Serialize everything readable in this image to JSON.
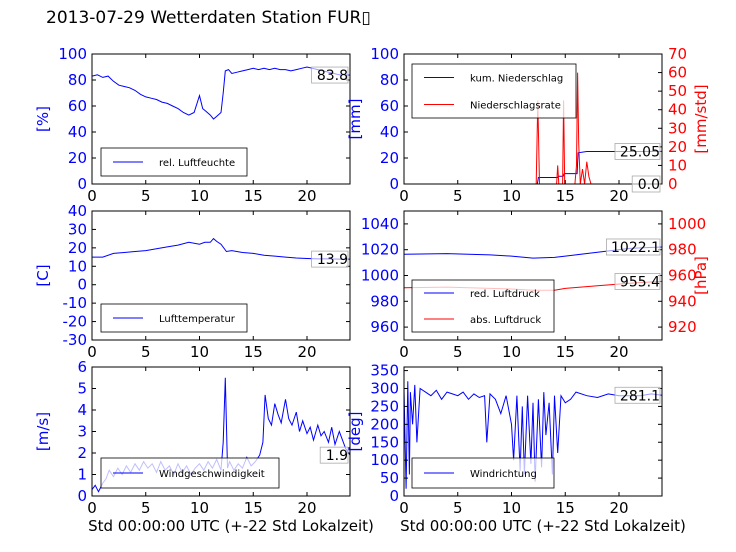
{
  "page": {
    "title": "2013-07-29 Wetterdaten Station FUR▯"
  },
  "colors": {
    "blue": "#0000ff",
    "red": "#ff0000",
    "axes": "#000000"
  },
  "chart_data": [
    {
      "id": "humidity",
      "type": "line",
      "xlim": [
        0,
        24
      ],
      "xticks": [
        0,
        5,
        10,
        15,
        20
      ],
      "ylim": [
        0,
        100
      ],
      "yticks": [
        0,
        20,
        40,
        60,
        80,
        100
      ],
      "ylabel": "[%]",
      "xlabel": "",
      "value_box": "83.8",
      "legend": {
        "placement": "lower-left",
        "entries": [
          {
            "label": "rel. Luftfeuchte",
            "color": "#0000ff"
          }
        ]
      },
      "series": [
        {
          "name": "rel. Luftfeuchte",
          "color": "#0000ff",
          "x": [
            0,
            0.5,
            1,
            1.5,
            2,
            2.5,
            3,
            3.5,
            4,
            4.5,
            5,
            5.5,
            6,
            6.5,
            7,
            7.5,
            8,
            8.5,
            9,
            9.5,
            10,
            10.3,
            10.6,
            11,
            11.3,
            11.6,
            12,
            12.2,
            12.4,
            12.7,
            13,
            13.5,
            14,
            14.5,
            15,
            15.5,
            16,
            16.5,
            17,
            17.5,
            18,
            18.5,
            19,
            19.5,
            20,
            20.5,
            21,
            21.5,
            22,
            22.5,
            23,
            23.5,
            24
          ],
          "y": [
            83,
            84,
            82,
            83,
            79,
            76,
            75,
            74,
            72,
            69,
            67,
            66,
            65,
            63,
            62,
            60,
            58,
            55,
            53,
            55,
            68,
            58,
            56,
            53,
            50,
            52,
            55,
            70,
            87,
            88,
            85,
            86,
            87,
            88,
            89,
            88,
            89,
            88,
            89,
            88,
            88,
            87,
            88,
            89,
            90,
            89,
            88,
            87,
            86,
            85,
            84,
            84,
            83.8
          ]
        }
      ]
    },
    {
      "id": "precipitation",
      "type": "line",
      "xlim": [
        0,
        24
      ],
      "xticks": [
        0,
        5,
        10,
        15,
        20
      ],
      "ylim": [
        0,
        100
      ],
      "yticks": [
        0,
        20,
        40,
        60,
        80,
        100
      ],
      "ylabel": "[mm]",
      "y2lim": [
        0,
        70
      ],
      "y2ticks": [
        0,
        10,
        20,
        30,
        40,
        50,
        60,
        70
      ],
      "y2label": "[mm/std]",
      "value_box": "25.05",
      "value_box2": "0.0",
      "legend": {
        "placement": "upper-left",
        "entries": [
          {
            "label": "kum. Niederschlag",
            "color": "#0000ff"
          },
          {
            "label": "Niederschlagsrate",
            "color": "#ff0000"
          }
        ]
      },
      "series": [
        {
          "name": "kum. Niederschlag",
          "color": "#0000ff",
          "axis": "left",
          "x": [
            0,
            12.4,
            12.5,
            14.3,
            14.4,
            14.8,
            14.9,
            16.1,
            16.2,
            17,
            20,
            24
          ],
          "y": [
            0,
            0,
            5,
            5,
            6,
            6,
            8,
            8,
            24,
            25,
            25,
            25.05
          ]
        },
        {
          "name": "Niederschlagsrate",
          "color": "#ff0000",
          "axis": "right",
          "x": [
            0,
            12.3,
            12.45,
            12.6,
            14.2,
            14.3,
            14.4,
            14.5,
            14.75,
            14.85,
            14.95,
            15.9,
            16.05,
            16.15,
            16.25,
            16.4,
            16.6,
            16.8,
            17.0,
            17.2,
            17.4,
            17.6,
            18,
            24
          ],
          "y": [
            0,
            0,
            45,
            0,
            0,
            10,
            0,
            0,
            0,
            45,
            0,
            0,
            10,
            60,
            22,
            0,
            8,
            0,
            12,
            4,
            0,
            0,
            0,
            0
          ]
        }
      ]
    },
    {
      "id": "temperature",
      "type": "line",
      "xlim": [
        0,
        24
      ],
      "xticks": [
        0,
        5,
        10,
        15,
        20
      ],
      "ylim": [
        -30,
        40
      ],
      "yticks": [
        -30,
        -20,
        -10,
        0,
        10,
        20,
        30,
        40
      ],
      "ylabel": "[C]",
      "value_box": "13.9",
      "legend": {
        "placement": "lower-left",
        "entries": [
          {
            "label": "Lufttemperatur",
            "color": "#0000ff"
          }
        ]
      },
      "series": [
        {
          "name": "Lufttemperatur",
          "color": "#0000ff",
          "x": [
            0,
            1,
            2,
            3,
            4,
            5,
            6,
            7,
            8,
            9,
            10,
            10.5,
            11,
            11.3,
            11.6,
            12,
            12.5,
            13,
            14,
            15,
            16,
            17,
            18,
            19,
            20,
            21,
            22,
            23,
            24
          ],
          "y": [
            15,
            15,
            17,
            17.5,
            18,
            18.5,
            19.5,
            20.5,
            21.5,
            23,
            22,
            23,
            23,
            25,
            23.5,
            22,
            18,
            18.5,
            17.5,
            17,
            16,
            15.5,
            15,
            14.5,
            14.2,
            14,
            14,
            13.9,
            13.9
          ]
        }
      ]
    },
    {
      "id": "pressure",
      "type": "line",
      "xlim": [
        0,
        24
      ],
      "xticks": [
        0,
        5,
        10,
        15,
        20
      ],
      "ylim": [
        950,
        1050
      ],
      "yticks": [
        960,
        980,
        1000,
        1020,
        1040
      ],
      "ylabel": "",
      "y2lim": [
        910,
        1010
      ],
      "y2ticks": [
        920,
        940,
        960,
        980,
        1000
      ],
      "y2label": "[hPa]",
      "value_box": "1022.1",
      "value_box2": "955.4",
      "legend": {
        "placement": "lower-left",
        "entries": [
          {
            "label": "red. Luftdruck",
            "color": "#0000ff"
          },
          {
            "label": "abs. Luftdruck",
            "color": "#ff0000"
          }
        ]
      },
      "series": [
        {
          "name": "red. Luftdruck",
          "color": "#0000ff",
          "axis": "left",
          "x": [
            0,
            4,
            8,
            10,
            12,
            14,
            15,
            18,
            21,
            24
          ],
          "y": [
            1016.5,
            1017,
            1016,
            1015,
            1013.5,
            1014,
            1015,
            1018,
            1021,
            1022.1
          ]
        },
        {
          "name": "abs. Luftdruck",
          "color": "#ff0000",
          "axis": "right",
          "x": [
            0,
            4,
            8,
            10,
            12,
            14,
            15,
            18,
            21,
            24
          ],
          "y": [
            950.5,
            951,
            950,
            949.5,
            948.5,
            948.5,
            950,
            952,
            954,
            955.4
          ]
        }
      ]
    },
    {
      "id": "wind-speed",
      "type": "line",
      "xlim": [
        0,
        24
      ],
      "xticks": [
        0,
        5,
        10,
        15,
        20
      ],
      "ylim": [
        0,
        6
      ],
      "yticks": [
        0,
        1,
        2,
        3,
        4,
        5,
        6
      ],
      "ylabel": "[m/s]",
      "xlabel": "Std 00:00:00 UTC (+-22 Std Lokalzeit)",
      "value_box": "1.9",
      "legend": {
        "placement": "lower-left",
        "entries": [
          {
            "label": "Windgeschwindigkeit",
            "color": "#0000ff"
          }
        ]
      },
      "series": [
        {
          "name": "Windgeschwindigkeit",
          "color": "#0000ff",
          "x": [
            0,
            0.3,
            0.6,
            1,
            1.3,
            1.6,
            2,
            2.4,
            2.8,
            3.2,
            3.6,
            4,
            4.4,
            4.8,
            5.2,
            5.6,
            6,
            6.4,
            6.8,
            7.2,
            7.6,
            8,
            8.4,
            8.8,
            9.2,
            9.6,
            10,
            10.4,
            10.8,
            11.2,
            11.6,
            12,
            12.2,
            12.4,
            12.6,
            12.8,
            13.2,
            13.6,
            14,
            14.4,
            14.8,
            15.2,
            15.6,
            15.9,
            16.1,
            16.4,
            16.7,
            17,
            17.3,
            17.6,
            18,
            18.3,
            18.6,
            19,
            19.3,
            19.6,
            20,
            20.3,
            20.6,
            21,
            21.3,
            21.6,
            22,
            22.3,
            22.6,
            23,
            23.3,
            23.6,
            24
          ],
          "y": [
            0.3,
            0.5,
            0.2,
            0.6,
            0.8,
            1.2,
            0.9,
            1.3,
            1.0,
            1.4,
            1.1,
            1.5,
            1.2,
            1.6,
            1.3,
            1.5,
            1.1,
            1.6,
            1.2,
            1.4,
            1.0,
            1.5,
            1.1,
            1.4,
            1.0,
            1.3,
            1.5,
            1.2,
            1.6,
            1.3,
            1.7,
            1.2,
            2.5,
            5.5,
            1.3,
            1.6,
            1.2,
            1.5,
            1.3,
            1.8,
            1.4,
            1.6,
            1.9,
            2.5,
            4.7,
            3.6,
            3.3,
            4.3,
            3.8,
            3.4,
            4.5,
            3.6,
            3.3,
            3.9,
            3.0,
            3.5,
            2.9,
            3.2,
            2.6,
            3.3,
            2.8,
            3.0,
            2.5,
            3.2,
            2.4,
            3.0,
            2.6,
            2.2,
            1.9
          ]
        }
      ]
    },
    {
      "id": "wind-direction",
      "type": "line",
      "xlim": [
        0,
        24
      ],
      "xticks": [
        0,
        5,
        10,
        15,
        20
      ],
      "ylim": [
        0,
        360
      ],
      "yticks": [
        0,
        50,
        100,
        150,
        200,
        250,
        300,
        350
      ],
      "ylabel": "[deg]",
      "xlabel": "Std 00:00:00 UTC (+-22 Std Lokalzeit)",
      "value_box": "281.1",
      "legend": {
        "placement": "lower-left",
        "entries": [
          {
            "label": "Windrichtung",
            "color": "#0000ff"
          }
        ]
      },
      "series": [
        {
          "name": "Windrichtung",
          "color": "#0000ff",
          "x": [
            0,
            0.2,
            0.35,
            0.5,
            0.6,
            0.8,
            1.0,
            1.2,
            1.5,
            2,
            2.5,
            3,
            3.5,
            4,
            4.5,
            5,
            5.5,
            6,
            6.5,
            7,
            7.5,
            7.7,
            8,
            8.5,
            9,
            9.5,
            10,
            10.2,
            10.5,
            10.8,
            11,
            11.2,
            11.5,
            11.8,
            12,
            12.2,
            12.5,
            12.8,
            13,
            13.2,
            13.5,
            13.8,
            14,
            14.3,
            14.6,
            15,
            15.5,
            16,
            17,
            18,
            19,
            20,
            21,
            22,
            23,
            24
          ],
          "y": [
            300,
            20,
            320,
            60,
            290,
            200,
            310,
            150,
            300,
            290,
            280,
            295,
            270,
            290,
            285,
            280,
            290,
            270,
            285,
            275,
            280,
            150,
            285,
            270,
            230,
            280,
            200,
            100,
            280,
            70,
            250,
            60,
            280,
            90,
            260,
            40,
            270,
            80,
            290,
            170,
            260,
            60,
            280,
            120,
            280,
            260,
            270,
            290,
            280,
            275,
            285,
            280,
            280,
            280,
            285,
            281.1
          ]
        }
      ]
    }
  ]
}
